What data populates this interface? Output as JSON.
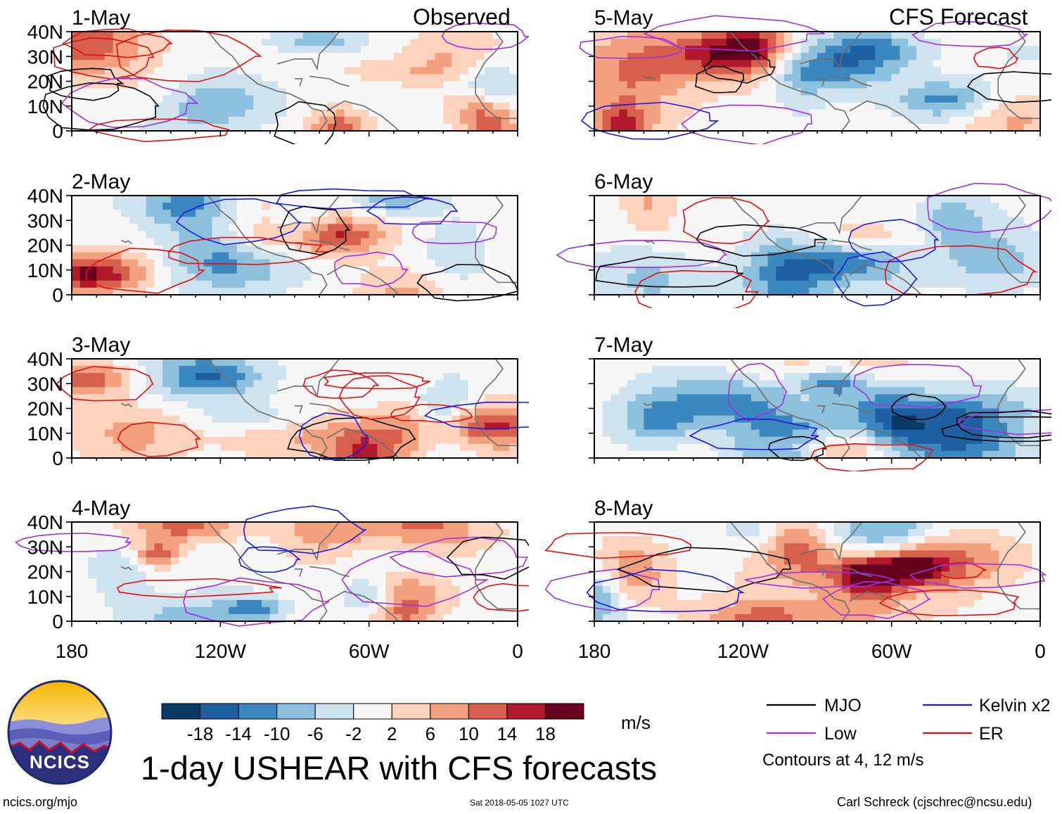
{
  "title": "1-day USHEAR with CFS forecasts",
  "footer": {
    "site": "ncics.org/mjo",
    "timestamp": "Sat 2018-05-05 1027 UTC",
    "author": "Carl Schreck (cjschrec@ncsu.edu)"
  },
  "logo": {
    "text": "NCICS"
  },
  "colorbar": {
    "units": "m/s",
    "ticks": [
      "-18",
      "-14",
      "-10",
      "-6",
      "-2",
      "2",
      "6",
      "10",
      "14",
      "18"
    ],
    "colors": [
      "#0a3a66",
      "#1d5fa0",
      "#3b87c0",
      "#8cc0dd",
      "#cfe3ef",
      "#f7f7f7",
      "#fdd3bd",
      "#f2a07e",
      "#d6604d",
      "#b2182b",
      "#67001f"
    ]
  },
  "legend": {
    "items": [
      {
        "label": "MJO",
        "color": "#000000"
      },
      {
        "label": "Kelvin x2",
        "color": "#1a1adc"
      },
      {
        "label": "Low",
        "color": "#a030e0"
      },
      {
        "label": "ER",
        "color": "#e01010"
      }
    ],
    "note": "Contours at 4, 12 m/s"
  },
  "chart_data": {
    "type": "heatmap",
    "variable": "USHEAR anomaly",
    "units": "m/s",
    "x_ticks": [
      "180",
      "120W",
      "60W",
      "0"
    ],
    "y_ticks": [
      "40N",
      "30N",
      "20N",
      "10N",
      "0"
    ],
    "x_range": [
      -180,
      0
    ],
    "y_range": [
      0,
      40
    ],
    "columns": [
      {
        "header": "Observed",
        "panels": [
          "1-May",
          "2-May",
          "3-May",
          "4-May"
        ]
      },
      {
        "header": "CFS Forecast",
        "panels": [
          "5-May",
          "6-May",
          "7-May",
          "8-May"
        ]
      }
    ]
  }
}
